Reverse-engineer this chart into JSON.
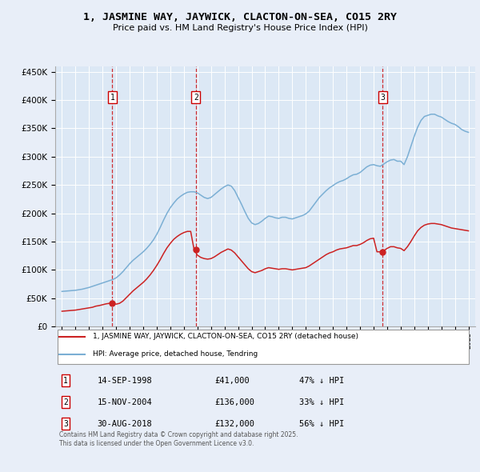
{
  "title": "1, JASMINE WAY, JAYWICK, CLACTON-ON-SEA, CO15 2RY",
  "subtitle": "Price paid vs. HM Land Registry's House Price Index (HPI)",
  "bg_color": "#e8eef8",
  "plot_bg_color": "#dce8f5",
  "hpi_color": "#7bafd4",
  "price_color": "#cc2222",
  "legend_label_price": "1, JASMINE WAY, JAYWICK, CLACTON-ON-SEA, CO15 2RY (detached house)",
  "legend_label_hpi": "HPI: Average price, detached house, Tendring",
  "footer": "Contains HM Land Registry data © Crown copyright and database right 2025.\nThis data is licensed under the Open Government Licence v3.0.",
  "purchases": [
    {
      "label": "1",
      "date_num": 1998.71,
      "price": 41000,
      "text": "14-SEP-1998",
      "price_str": "£41,000",
      "hpi_str": "47% ↓ HPI"
    },
    {
      "label": "2",
      "date_num": 2004.88,
      "price": 136000,
      "text": "15-NOV-2004",
      "price_str": "£136,000",
      "hpi_str": "33% ↓ HPI"
    },
    {
      "label": "3",
      "date_num": 2018.66,
      "price": 132000,
      "text": "30-AUG-2018",
      "price_str": "£132,000",
      "hpi_str": "56% ↓ HPI"
    }
  ],
  "ylim": [
    0,
    460000
  ],
  "yticks": [
    0,
    50000,
    100000,
    150000,
    200000,
    250000,
    300000,
    350000,
    400000,
    450000
  ],
  "xlim": [
    1994.5,
    2025.5
  ],
  "hpi_data_x": [
    1995,
    1995.25,
    1995.5,
    1995.75,
    1996,
    1996.25,
    1996.5,
    1996.75,
    1997,
    1997.25,
    1997.5,
    1997.75,
    1998,
    1998.25,
    1998.5,
    1998.75,
    1999,
    1999.25,
    1999.5,
    1999.75,
    2000,
    2000.25,
    2000.5,
    2000.75,
    2001,
    2001.25,
    2001.5,
    2001.75,
    2002,
    2002.25,
    2002.5,
    2002.75,
    2003,
    2003.25,
    2003.5,
    2003.75,
    2004,
    2004.25,
    2004.5,
    2004.75,
    2005,
    2005.25,
    2005.5,
    2005.75,
    2006,
    2006.25,
    2006.5,
    2006.75,
    2007,
    2007.25,
    2007.5,
    2007.75,
    2008,
    2008.25,
    2008.5,
    2008.75,
    2009,
    2009.25,
    2009.5,
    2009.75,
    2010,
    2010.25,
    2010.5,
    2010.75,
    2011,
    2011.25,
    2011.5,
    2011.75,
    2012,
    2012.25,
    2012.5,
    2012.75,
    2013,
    2013.25,
    2013.5,
    2013.75,
    2014,
    2014.25,
    2014.5,
    2014.75,
    2015,
    2015.25,
    2015.5,
    2015.75,
    2016,
    2016.25,
    2016.5,
    2016.75,
    2017,
    2017.25,
    2017.5,
    2017.75,
    2018,
    2018.25,
    2018.5,
    2018.75,
    2019,
    2019.25,
    2019.5,
    2019.75,
    2020,
    2020.25,
    2020.5,
    2020.75,
    2021,
    2021.25,
    2021.5,
    2021.75,
    2022,
    2022.25,
    2022.5,
    2022.75,
    2023,
    2023.25,
    2023.5,
    2023.75,
    2024,
    2024.25,
    2024.5,
    2024.75,
    2025
  ],
  "hpi_data_y": [
    62000,
    62500,
    63000,
    63500,
    64000,
    65000,
    66000,
    67500,
    69000,
    71000,
    73000,
    75000,
    77000,
    79000,
    81000,
    83000,
    86000,
    91000,
    97000,
    104000,
    111000,
    117000,
    122000,
    127000,
    132000,
    138000,
    145000,
    153000,
    163000,
    175000,
    188000,
    200000,
    210000,
    218000,
    225000,
    230000,
    234000,
    237000,
    238000,
    238000,
    236000,
    232000,
    228000,
    226000,
    228000,
    233000,
    238000,
    243000,
    247000,
    250000,
    248000,
    240000,
    228000,
    216000,
    203000,
    191000,
    183000,
    180000,
    182000,
    186000,
    191000,
    195000,
    194000,
    192000,
    191000,
    193000,
    193000,
    191000,
    190000,
    192000,
    194000,
    196000,
    199000,
    204000,
    212000,
    220000,
    228000,
    234000,
    240000,
    245000,
    249000,
    253000,
    256000,
    258000,
    261000,
    265000,
    268000,
    269000,
    272000,
    277000,
    282000,
    285000,
    286000,
    284000,
    283000,
    287000,
    291000,
    294000,
    295000,
    292000,
    292000,
    286000,
    300000,
    318000,
    336000,
    352000,
    364000,
    371000,
    373000,
    375000,
    375000,
    372000,
    370000,
    366000,
    362000,
    359000,
    357000,
    353000,
    348000,
    345000,
    343000
  ],
  "pp_data_x": [
    1995,
    1995.25,
    1995.5,
    1995.75,
    1996,
    1996.25,
    1996.5,
    1996.75,
    1997,
    1997.25,
    1997.5,
    1997.75,
    1998,
    1998.25,
    1998.5,
    1998.75,
    1999,
    1999.25,
    1999.5,
    1999.75,
    2000,
    2000.25,
    2000.5,
    2000.75,
    2001,
    2001.25,
    2001.5,
    2001.75,
    2002,
    2002.25,
    2002.5,
    2002.75,
    2003,
    2003.25,
    2003.5,
    2003.75,
    2004,
    2004.25,
    2004.5,
    2004.75,
    2005,
    2005.25,
    2005.5,
    2005.75,
    2006,
    2006.25,
    2006.5,
    2006.75,
    2007,
    2007.25,
    2007.5,
    2007.75,
    2008,
    2008.25,
    2008.5,
    2008.75,
    2009,
    2009.25,
    2009.5,
    2009.75,
    2010,
    2010.25,
    2010.5,
    2010.75,
    2011,
    2011.25,
    2011.5,
    2011.75,
    2012,
    2012.25,
    2012.5,
    2012.75,
    2013,
    2013.25,
    2013.5,
    2013.75,
    2014,
    2014.25,
    2014.5,
    2014.75,
    2015,
    2015.25,
    2015.5,
    2015.75,
    2016,
    2016.25,
    2016.5,
    2016.75,
    2017,
    2017.25,
    2017.5,
    2017.75,
    2018,
    2018.25,
    2018.5,
    2018.75,
    2019,
    2019.25,
    2019.5,
    2019.75,
    2020,
    2020.25,
    2020.5,
    2020.75,
    2021,
    2021.25,
    2021.5,
    2021.75,
    2022,
    2022.25,
    2022.5,
    2022.75,
    2023,
    2023.25,
    2023.5,
    2023.75,
    2024,
    2024.25,
    2024.5,
    2024.75,
    2025
  ],
  "pp_data_y": [
    27000,
    27500,
    28000,
    28500,
    29000,
    30000,
    31000,
    32000,
    33000,
    34000,
    36000,
    37000,
    38500,
    40000,
    41000,
    40000,
    39500,
    41000,
    45000,
    51000,
    57000,
    63000,
    68000,
    73000,
    78000,
    84000,
    91000,
    99000,
    108000,
    118000,
    129000,
    139000,
    147000,
    154000,
    159000,
    163000,
    166000,
    168000,
    168000,
    136000,
    126000,
    122000,
    120000,
    119000,
    120000,
    123000,
    127000,
    131000,
    134000,
    137000,
    135000,
    130000,
    123000,
    116000,
    109000,
    102000,
    97000,
    95000,
    97000,
    99000,
    102000,
    104000,
    103000,
    102000,
    101000,
    102000,
    102000,
    101000,
    100000,
    101000,
    102000,
    103000,
    104000,
    107000,
    111000,
    115000,
    119000,
    123000,
    127000,
    130000,
    132000,
    135000,
    137000,
    138000,
    139000,
    141000,
    143000,
    143000,
    145000,
    148000,
    152000,
    155000,
    156000,
    132000,
    132000,
    134000,
    138000,
    141000,
    141000,
    139000,
    138000,
    134000,
    141000,
    150000,
    160000,
    169000,
    175000,
    179000,
    181000,
    182000,
    182000,
    181000,
    180000,
    178000,
    176000,
    174000,
    173000,
    172000,
    171000,
    170000,
    169000
  ]
}
